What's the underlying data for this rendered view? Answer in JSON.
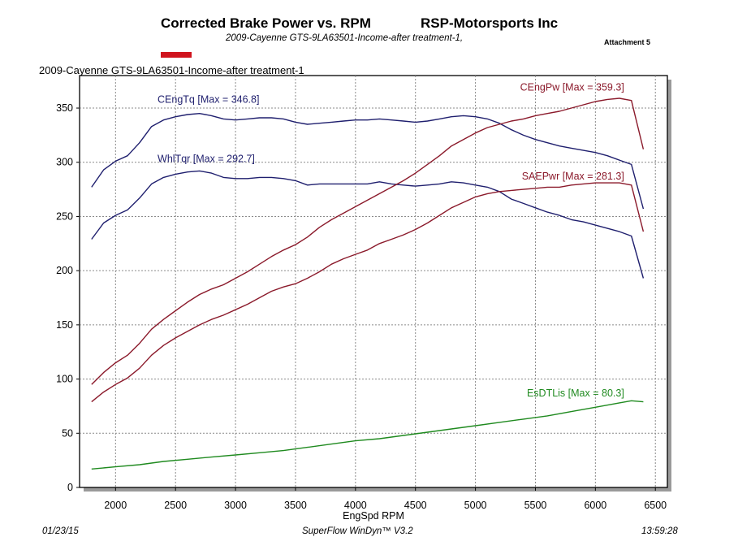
{
  "header": {
    "title": "Corrected Brake Power vs. RPM",
    "company": "RSP-Motorsports Inc",
    "subtitle": "2009-Cayenne GTS-9LA63501-Income-after treatment-1,",
    "attachment": "Attachment 5",
    "legend_swatch_color": "#d0141e",
    "run_label": "2009-Cayenne GTS-9LA63501-Income-after treatment-1"
  },
  "footer": {
    "date": "01/23/15",
    "software": "SuperFlow WinDyn™ V3.2",
    "time": "13:59:28"
  },
  "chart_data": {
    "type": "line",
    "title": "Corrected Brake Power vs. RPM",
    "xlabel": "EngSpd RPM",
    "ylabel": "",
    "xlim": [
      1700,
      6600
    ],
    "ylim": [
      0,
      380
    ],
    "xticks": [
      2000,
      2500,
      3000,
      3500,
      4000,
      4500,
      5000,
      5500,
      6000,
      6500
    ],
    "yticks": [
      0,
      50,
      100,
      150,
      200,
      250,
      300,
      350
    ],
    "grid": true,
    "series": [
      {
        "name": "CEngTq",
        "label": "CEngTq [Max = 346.8]",
        "color": "#1f1f6e",
        "x": [
          1800,
          1900,
          2000,
          2100,
          2200,
          2300,
          2400,
          2500,
          2600,
          2700,
          2800,
          2900,
          3000,
          3100,
          3200,
          3300,
          3400,
          3500,
          3600,
          3700,
          3800,
          3900,
          4000,
          4100,
          4200,
          4300,
          4400,
          4500,
          4600,
          4700,
          4800,
          4900,
          5000,
          5100,
          5200,
          5300,
          5400,
          5500,
          5600,
          5700,
          5800,
          5900,
          6000,
          6100,
          6200,
          6300,
          6400
        ],
        "y": [
          277,
          293,
          301,
          306,
          318,
          333,
          339,
          342,
          344,
          345,
          343,
          340,
          339,
          340,
          341,
          341,
          340,
          337,
          335,
          336,
          337,
          338,
          339,
          339,
          340,
          339,
          338,
          337,
          338,
          340,
          342,
          343,
          342,
          340,
          336,
          330,
          325,
          321,
          318,
          315,
          313,
          311,
          309,
          306,
          302,
          298,
          257
        ]
      },
      {
        "name": "WhlTqr",
        "label": "WhlTqr [Max = 292.7]",
        "color": "#1f1f6e",
        "x": [
          1800,
          1900,
          2000,
          2100,
          2200,
          2300,
          2400,
          2500,
          2600,
          2700,
          2800,
          2900,
          3000,
          3100,
          3200,
          3300,
          3400,
          3500,
          3600,
          3700,
          3800,
          3900,
          4000,
          4100,
          4200,
          4300,
          4400,
          4500,
          4600,
          4700,
          4800,
          4900,
          5000,
          5100,
          5200,
          5300,
          5400,
          5500,
          5600,
          5700,
          5800,
          5900,
          6000,
          6100,
          6200,
          6300,
          6400
        ],
        "y": [
          229,
          244,
          251,
          256,
          267,
          280,
          286,
          289,
          291,
          292,
          290,
          286,
          285,
          285,
          286,
          286,
          285,
          283,
          279,
          280,
          280,
          280,
          280,
          280,
          282,
          280,
          279,
          278,
          279,
          280,
          282,
          281,
          279,
          277,
          273,
          266,
          262,
          258,
          254,
          251,
          247,
          245,
          242,
          239,
          236,
          232,
          193
        ]
      },
      {
        "name": "CEngPw",
        "label": "CEngPw [Max = 359.3]",
        "color": "#8b1a2b",
        "x": [
          1800,
          1900,
          2000,
          2100,
          2200,
          2300,
          2400,
          2500,
          2600,
          2700,
          2800,
          2900,
          3000,
          3100,
          3200,
          3300,
          3400,
          3500,
          3600,
          3700,
          3800,
          3900,
          4000,
          4100,
          4200,
          4300,
          4400,
          4500,
          4600,
          4700,
          4800,
          4900,
          5000,
          5100,
          5200,
          5300,
          5400,
          5500,
          5600,
          5700,
          5800,
          5900,
          6000,
          6100,
          6200,
          6300,
          6400
        ],
        "y": [
          95,
          106,
          115,
          122,
          133,
          146,
          155,
          163,
          171,
          178,
          183,
          187,
          193,
          199,
          206,
          213,
          219,
          224,
          231,
          240,
          247,
          253,
          259,
          265,
          271,
          277,
          283,
          290,
          298,
          306,
          315,
          321,
          327,
          332,
          335,
          338,
          340,
          343,
          345,
          347,
          350,
          353,
          356,
          358,
          359,
          357,
          312
        ]
      },
      {
        "name": "SAEPwr",
        "label": "SAEPwr [Max = 281.3]",
        "color": "#8b1a2b",
        "x": [
          1800,
          1900,
          2000,
          2100,
          2200,
          2300,
          2400,
          2500,
          2600,
          2700,
          2800,
          2900,
          3000,
          3100,
          3200,
          3300,
          3400,
          3500,
          3600,
          3700,
          3800,
          3900,
          4000,
          4100,
          4200,
          4300,
          4400,
          4500,
          4600,
          4700,
          4800,
          4900,
          5000,
          5100,
          5200,
          5300,
          5400,
          5500,
          5600,
          5700,
          5800,
          5900,
          6000,
          6100,
          6200,
          6300,
          6400
        ],
        "y": [
          79,
          88,
          95,
          101,
          110,
          122,
          131,
          138,
          144,
          150,
          155,
          159,
          164,
          169,
          175,
          181,
          185,
          188,
          193,
          199,
          206,
          211,
          215,
          219,
          225,
          229,
          233,
          238,
          244,
          251,
          258,
          263,
          268,
          271,
          273,
          274,
          275,
          276,
          277,
          277,
          279,
          280,
          281,
          281,
          281,
          279,
          236
        ]
      },
      {
        "name": "EsDTLis",
        "label": "EsDTLis [Max = 80.3]",
        "color": "#1f8a1f",
        "x": [
          1800,
          2000,
          2200,
          2400,
          2600,
          2800,
          3000,
          3200,
          3400,
          3600,
          3800,
          4000,
          4200,
          4400,
          4600,
          4800,
          5000,
          5200,
          5400,
          5600,
          5800,
          6000,
          6200,
          6300,
          6400
        ],
        "y": [
          17,
          19,
          21,
          24,
          26,
          28,
          30,
          32,
          34,
          37,
          40,
          43,
          45,
          48,
          51,
          54,
          57,
          60,
          63,
          66,
          70,
          74,
          78,
          80,
          79
        ]
      }
    ]
  }
}
